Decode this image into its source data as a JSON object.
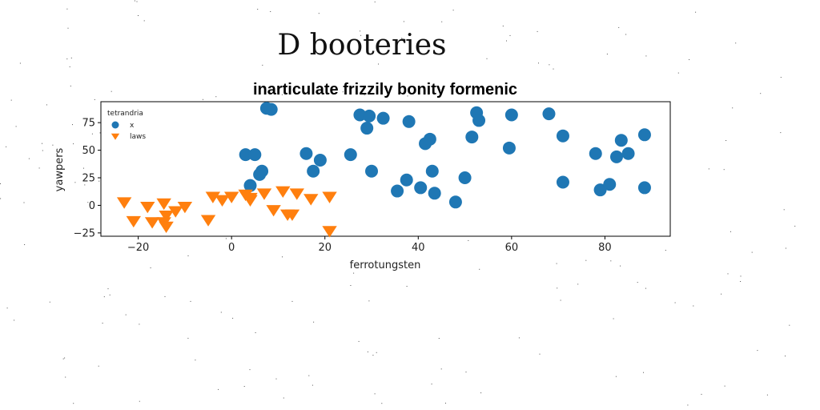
{
  "page": {
    "title": "D booteries"
  },
  "chart_data": {
    "type": "scatter",
    "title": "inarticulate frizzily bonity formenic",
    "xlabel": "ferrotungsten",
    "ylabel": "yawpers",
    "xlim": [
      -28,
      94
    ],
    "ylim": [
      -28,
      94
    ],
    "xticks": [
      -20,
      0,
      20,
      40,
      60,
      80
    ],
    "yticks": [
      -25,
      0,
      25,
      50,
      75
    ],
    "xtick_labels": [
      "−20",
      "0",
      "20",
      "40",
      "60",
      "80"
    ],
    "ytick_labels": [
      "−25",
      "0",
      "25",
      "50",
      "75"
    ],
    "grid": false,
    "legend": {
      "title": "tetrandria",
      "placement": "top-left"
    },
    "series": [
      {
        "name": "x",
        "marker": "circle",
        "color": "#1f77b4",
        "points": [
          [
            3,
            46
          ],
          [
            5,
            46
          ],
          [
            4,
            18
          ],
          [
            6,
            28
          ],
          [
            6.5,
            31
          ],
          [
            7.5,
            88
          ],
          [
            8.5,
            87
          ],
          [
            16,
            47
          ],
          [
            17.5,
            31
          ],
          [
            19,
            41
          ],
          [
            25.5,
            46
          ],
          [
            27.5,
            82
          ],
          [
            29.5,
            81
          ],
          [
            29,
            70
          ],
          [
            30,
            31
          ],
          [
            32.5,
            79
          ],
          [
            35.5,
            13
          ],
          [
            37.5,
            23
          ],
          [
            38,
            76
          ],
          [
            40.5,
            16
          ],
          [
            41.5,
            56
          ],
          [
            42.5,
            60
          ],
          [
            43,
            31
          ],
          [
            43.5,
            11
          ],
          [
            48,
            3
          ],
          [
            50,
            25
          ],
          [
            51.5,
            62
          ],
          [
            52.5,
            84
          ],
          [
            53,
            77
          ],
          [
            59.5,
            52
          ],
          [
            60,
            82
          ],
          [
            68,
            83
          ],
          [
            71,
            63
          ],
          [
            71,
            21
          ],
          [
            78,
            47
          ],
          [
            79,
            14
          ],
          [
            81,
            19
          ],
          [
            82.5,
            44
          ],
          [
            83.5,
            59
          ],
          [
            85,
            47
          ],
          [
            88.5,
            64
          ],
          [
            88.5,
            16
          ]
        ]
      },
      {
        "name": "laws",
        "marker": "triangle-down",
        "color": "#ff7f0e",
        "points": [
          [
            -23,
            3
          ],
          [
            -21,
            -14
          ],
          [
            -18,
            -1
          ],
          [
            -17,
            -15
          ],
          [
            -14.5,
            -15
          ],
          [
            -14.5,
            2
          ],
          [
            -14,
            -9
          ],
          [
            -14,
            -19
          ],
          [
            -12,
            -5
          ],
          [
            -10,
            -1
          ],
          [
            -5,
            -13
          ],
          [
            -4,
            8
          ],
          [
            -2,
            5
          ],
          [
            0,
            8
          ],
          [
            3,
            10
          ],
          [
            4,
            7
          ],
          [
            4,
            5
          ],
          [
            7,
            11
          ],
          [
            9,
            -4
          ],
          [
            11,
            13
          ],
          [
            12,
            -8
          ],
          [
            13,
            -8
          ],
          [
            14,
            11
          ],
          [
            17,
            6
          ],
          [
            21,
            8
          ],
          [
            21,
            -23
          ]
        ]
      }
    ]
  }
}
